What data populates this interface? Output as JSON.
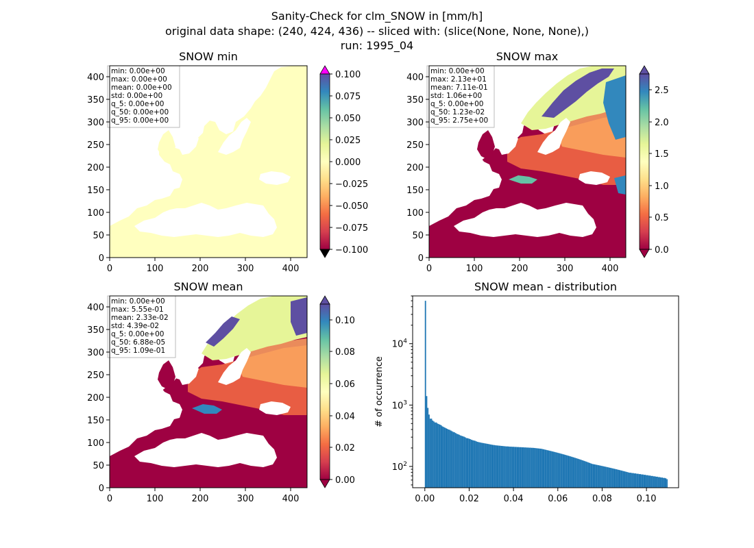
{
  "figure": {
    "title_lines": [
      "Sanity-Check for clm_SNOW in [mm/h]",
      "original data shape: (240, 424, 436) -- sliced with: (slice(None, None, None),)",
      "run: 1995_04"
    ]
  },
  "colors": {
    "bar_fill": "#1f77b4",
    "colorbar_stops": [
      "#9e0142",
      "#d53e4f",
      "#f46d43",
      "#fdae61",
      "#fee08b",
      "#ffffbf",
      "#e6f598",
      "#abdda4",
      "#66c2a5",
      "#3288bd",
      "#5e4fa2"
    ],
    "min_map_fill": "#ffffbf",
    "min_over_color": "#ff00ff",
    "min_under_color": "#000000"
  },
  "chart_data": [
    {
      "type": "heatmap",
      "title": "SNOW min",
      "xticks": [
        "0",
        "100",
        "200",
        "300",
        "400"
      ],
      "yticks": [
        "0",
        "50",
        "100",
        "150",
        "200",
        "250",
        "300",
        "350",
        "400"
      ],
      "xlim": [
        0,
        436
      ],
      "ylim": [
        0,
        424
      ],
      "colorbar": {
        "ticks": [
          "0.100",
          "0.075",
          "0.050",
          "0.025",
          "0.000",
          "−0.025",
          "−0.050",
          "−0.075",
          "−0.100"
        ],
        "range": [
          -0.1,
          0.1
        ],
        "extend": "both"
      },
      "stats": [
        "min: 0.00e+00",
        "max: 0.00e+00",
        "mean: 0.00e+00",
        "std: 0.00e+00",
        "q_5: 0.00e+00",
        "q_50: 0.00e+00",
        "q_95: 0.00e+00"
      ]
    },
    {
      "type": "heatmap",
      "title": "SNOW max",
      "xticks": [
        "0",
        "100",
        "200",
        "300",
        "400"
      ],
      "yticks": [
        "0",
        "50",
        "100",
        "150",
        "200",
        "250",
        "300",
        "350",
        "400"
      ],
      "xlim": [
        0,
        436
      ],
      "ylim": [
        0,
        424
      ],
      "colorbar": {
        "ticks": [
          "2.5",
          "2.0",
          "1.5",
          "1.0",
          "0.5",
          "0.0"
        ],
        "range": [
          0,
          2.8
        ],
        "extend": "both"
      },
      "stats": [
        "min: 0.00e+00",
        "max: 2.13e+01",
        "mean: 7.11e-01",
        "std: 1.06e+00",
        "q_5: 0.00e+00",
        "q_50: 1.23e-02",
        "q_95: 2.75e+00"
      ]
    },
    {
      "type": "heatmap",
      "title": "SNOW mean",
      "xticks": [
        "0",
        "100",
        "200",
        "300",
        "400"
      ],
      "yticks": [
        "0",
        "50",
        "100",
        "150",
        "200",
        "250",
        "300",
        "350",
        "400"
      ],
      "xlim": [
        0,
        436
      ],
      "ylim": [
        0,
        424
      ],
      "colorbar": {
        "ticks": [
          "0.10",
          "0.08",
          "0.06",
          "0.04",
          "0.02",
          "0.00"
        ],
        "range": [
          0,
          0.11
        ],
        "extend": "both"
      },
      "stats": [
        "min: 0.00e+00",
        "max: 5.55e-01",
        "mean: 2.33e-02",
        "std: 4.39e-02",
        "q_5: 0.00e+00",
        "q_50: 6.88e-05",
        "q_95: 1.09e-01"
      ]
    },
    {
      "type": "bar",
      "title": "SNOW mean - distribution",
      "ylabel": "# of occurrence",
      "yscale": "log",
      "xlim": [
        -0.0055,
        0.1145
      ],
      "ylim": [
        45,
        60000
      ],
      "xticks": [
        "0.00",
        "0.02",
        "0.04",
        "0.06",
        "0.08",
        "0.10"
      ],
      "yticks": [
        {
          "value": 100,
          "base": "10",
          "exp": "2"
        },
        {
          "value": 1000,
          "base": "10",
          "exp": "3"
        },
        {
          "value": 10000,
          "base": "10",
          "exp": "4"
        }
      ],
      "bins": {
        "start": 0.0,
        "width": 0.000545
      },
      "values": [
        50000,
        1400,
        900,
        700,
        600,
        600,
        560,
        540,
        520,
        520,
        500,
        490,
        480,
        470,
        450,
        440,
        430,
        420,
        410,
        400,
        395,
        385,
        375,
        365,
        360,
        350,
        340,
        335,
        328,
        320,
        315,
        310,
        305,
        298,
        290,
        288,
        284,
        279,
        273,
        268,
        265,
        262,
        257,
        252,
        249,
        247,
        244,
        242,
        240,
        238,
        236,
        234,
        232,
        230,
        228,
        226,
        224,
        223,
        221,
        220,
        219,
        218,
        217,
        216,
        215,
        214,
        213,
        212,
        212,
        211,
        210,
        210,
        209,
        209,
        208,
        208,
        207,
        207,
        206,
        206,
        205,
        205,
        204,
        204,
        203,
        203,
        202,
        202,
        201,
        201,
        200,
        199,
        198,
        197,
        196,
        195,
        194,
        192,
        190,
        188,
        186,
        184,
        182,
        180,
        178,
        176,
        174,
        172,
        170,
        168,
        166,
        164,
        162,
        160,
        158,
        156,
        154,
        152,
        150,
        148,
        146,
        144,
        142,
        140,
        138,
        136,
        134,
        132,
        130,
        128,
        126,
        124,
        122,
        120,
        118,
        116,
        114,
        112,
        110,
        109,
        108,
        107,
        106,
        105,
        104,
        103,
        102,
        101,
        100,
        99,
        98,
        97,
        96,
        95,
        94,
        93,
        92,
        91,
        90,
        89,
        88,
        87,
        86,
        85,
        84,
        83,
        82,
        81,
        80,
        79,
        79,
        78,
        78,
        77,
        77,
        76,
        76,
        75,
        75,
        74,
        74,
        73,
        73,
        72,
        72,
        71,
        71,
        70,
        70,
        69,
        69,
        68,
        68,
        67,
        67,
        66,
        66,
        65,
        65,
        64,
        62
      ]
    }
  ]
}
